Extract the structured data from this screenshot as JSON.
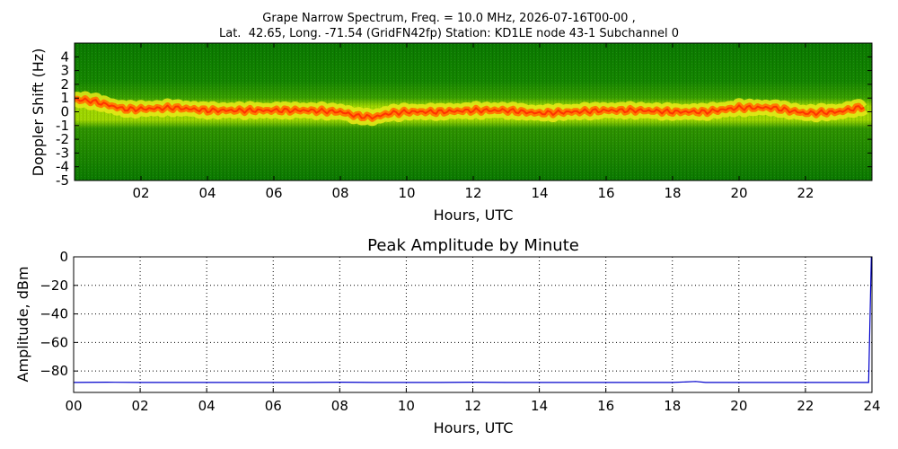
{
  "figure": {
    "title_line1": "Grape Narrow Spectrum, Freq. = 10.0 MHz, 2026-07-16T00-00 ,",
    "title_line2": "Lat.  42.65, Long. -71.54 (GridFN42fp) Station: KD1LE node 43-1 Subchannel 0"
  },
  "chart_data": [
    {
      "type": "heatmap",
      "title": "",
      "xlabel": "Hours, UTC",
      "ylabel": "Doppler Shift (Hz)",
      "xlim": [
        0,
        24
      ],
      "ylim": [
        -5,
        5
      ],
      "x_ticks": [
        "02",
        "04",
        "06",
        "08",
        "10",
        "12",
        "14",
        "16",
        "18",
        "20",
        "22"
      ],
      "y_ticks": [
        "4",
        "3",
        "2",
        "1",
        "0",
        "-1",
        "-2",
        "-3",
        "-4",
        "-5"
      ],
      "colormap": [
        "#0a7a00",
        "#2f9a00",
        "#8fd400",
        "#f2ef1b",
        "#ff8a00",
        "#ff2a00"
      ],
      "ridge": {
        "x": [
          0,
          0.5,
          1,
          1.5,
          2,
          3,
          4,
          5,
          6,
          7,
          8,
          8.5,
          9,
          9.5,
          10,
          11,
          12,
          13,
          14,
          15,
          16,
          17,
          18,
          19,
          20,
          21,
          22,
          23,
          23.8
        ],
        "y": [
          0.9,
          0.8,
          0.5,
          0.2,
          0.2,
          0.3,
          0.1,
          0.1,
          0.1,
          0.1,
          0.0,
          -0.3,
          -0.4,
          -0.1,
          0.0,
          0.0,
          0.1,
          0.1,
          -0.1,
          0.0,
          0.1,
          0.1,
          0.0,
          0.0,
          0.3,
          0.3,
          -0.1,
          0.0,
          0.4
        ]
      },
      "grid": false
    },
    {
      "type": "line",
      "title": "Peak Amplitude by Minute",
      "xlabel": "Hours, UTC",
      "ylabel": "Amplitude, dBm",
      "xlim": [
        0,
        24
      ],
      "ylim": [
        -95,
        0
      ],
      "x_ticks": [
        "00",
        "02",
        "04",
        "06",
        "08",
        "10",
        "12",
        "14",
        "16",
        "18",
        "20",
        "22",
        "24"
      ],
      "y_ticks": [
        "0",
        "−20",
        "−40",
        "−60",
        "−80"
      ],
      "grid": true,
      "series": [
        {
          "color": "#0000cc",
          "x": [
            0,
            1,
            2,
            3,
            4,
            5,
            6,
            7,
            8,
            9,
            10,
            11,
            12,
            13,
            14,
            15,
            16,
            17,
            18,
            18.7,
            19,
            20,
            21,
            22,
            23,
            23.9,
            23.98
          ],
          "values": [
            -88,
            -87.8,
            -88,
            -88,
            -88,
            -88,
            -88,
            -88,
            -87.8,
            -88,
            -88,
            -88,
            -87.8,
            -88,
            -88,
            -88,
            -88,
            -88,
            -88,
            -87.3,
            -88,
            -88,
            -88,
            -88,
            -88,
            -88,
            0
          ]
        }
      ]
    }
  ]
}
